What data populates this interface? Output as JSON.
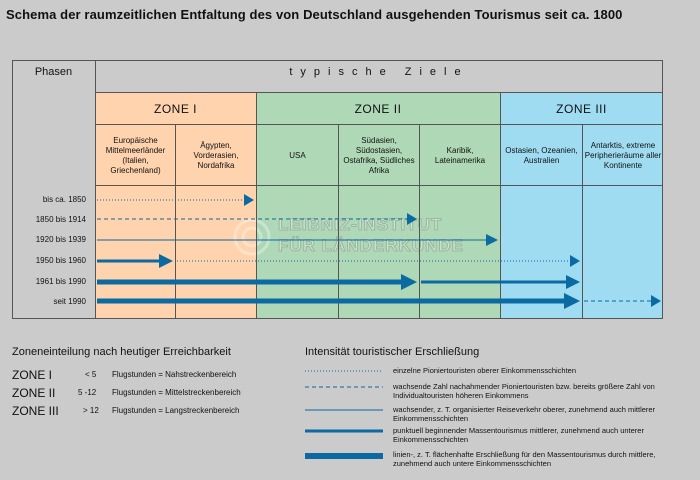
{
  "title": "Schema der raumzeitlichen Entfaltung des von Deutschland ausgehenden Tourismus seit ca. 1800",
  "header": {
    "phasen": "Phasen",
    "ziele": "typische Ziele"
  },
  "zones": [
    {
      "label": "ZONE I",
      "color": "#ffd3ae"
    },
    {
      "label": "ZONE II",
      "color": "#aed8b6"
    },
    {
      "label": "ZONE III",
      "color": "#9fdcf2"
    }
  ],
  "destinations": [
    "Europäische Mittelmeerländer (Italien, Griechenland)",
    "Ägypten, Vorderasien, Nordafrika",
    "USA",
    "Südasien, Südostasien, Ostafrika, Südliches Afrika",
    "Karibik, Lateinamerika",
    "Ostasien, Ozeanien, Australien",
    "Antarktis, extreme Peripherieräume aller Kontinente"
  ],
  "phases": [
    {
      "label": "bis ca. 1850",
      "line_style": "dotted",
      "end_column": 2,
      "arrow": true
    },
    {
      "label": "1850 bis 1914",
      "line_style": "dashed",
      "end_column": 4,
      "arrow": true
    },
    {
      "label": "1920 bis 1939",
      "line_style": "thin",
      "end_column": 5,
      "arrow": true
    },
    {
      "label": "1950 bis 1960",
      "line_style": "thick",
      "end_column": 1,
      "arrow": true,
      "continuation_style": "dotted",
      "continuation_end_column": 6
    },
    {
      "label": "1961 bis 1990",
      "line_style": "heavy",
      "end_column": 4,
      "arrow": true,
      "continuation_style": "thick",
      "continuation_end_column": 6
    },
    {
      "label": "seit 1990",
      "line_style": "heavy",
      "end_column": 6,
      "arrow": true,
      "continuation_style": "dashed",
      "continuation_end_column": 7
    }
  ],
  "watermark": {
    "line1": "LEIBNIZ-INSTITUT",
    "line2": "FÜR LÄNDERKUNDE"
  },
  "zone_section": {
    "title": "Zoneneinteilung nach heutiger Erreichbarkeit",
    "rows": [
      {
        "zone": "ZONE I",
        "hours": "< 5",
        "text": "Flugstunden = Nahstreckenbereich"
      },
      {
        "zone": "ZONE II",
        "hours": "5 -12",
        "text": "Flugstunden = Mittelstreckenbereich"
      },
      {
        "zone": "ZONE III",
        "hours": "> 12",
        "text": "Flugstunden = Langstreckenbereich"
      }
    ]
  },
  "legend": {
    "title": "Intensität touristischer Erschließung",
    "items": [
      {
        "style": "dotted",
        "text": "einzelne Pioniertouristen oberer Einkommensschichten"
      },
      {
        "style": "dashed",
        "text": "wachsende Zahl nachahmender Pioniertouristen bzw. bereits größere Zahl von Individualtouristen höheren Einkommens"
      },
      {
        "style": "thin",
        "text": "wachsender, z. T. organisierter Reiseverkehr oberer, zunehmend auch mittlerer Einkommensschichten"
      },
      {
        "style": "thick",
        "text": "punktuell beginnender Massentourismus mittlerer, zunehmend auch unterer Einkommensschichten"
      },
      {
        "style": "heavy",
        "text": "linien-, z. T. flächenhafte Erschließung für den Massentourismus durch mittlere, zunehmend auch untere Einkommensschichten"
      }
    ]
  },
  "colors": {
    "line": "#0a6aa1",
    "background": "#cbcbcb"
  }
}
